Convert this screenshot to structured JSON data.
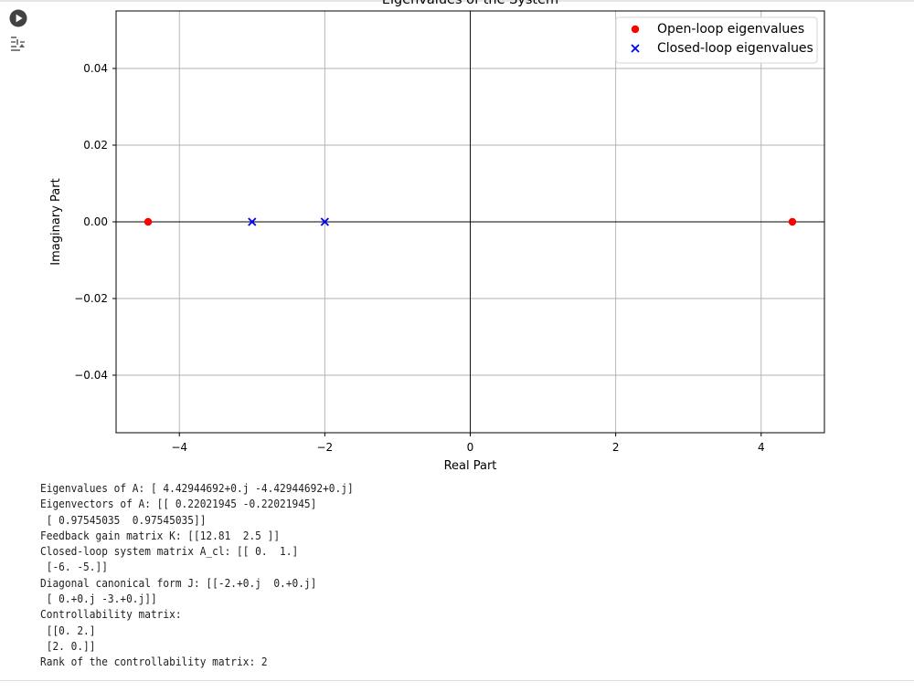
{
  "toolbar": {
    "run_icon": "play-circle-icon",
    "cell_tools_icon": "sliders-icon"
  },
  "chart_data": {
    "type": "scatter",
    "title": "Eigenvalues of the System",
    "xlabel": "Real Part",
    "ylabel": "Imaginary Part",
    "xlim": [
      -4.87,
      4.87
    ],
    "ylim": [
      -0.055,
      0.055
    ],
    "xticks": [
      -4,
      -2,
      0,
      2,
      4
    ],
    "xtick_labels": [
      "−4",
      "−2",
      "0",
      "2",
      "4"
    ],
    "yticks": [
      -0.04,
      -0.02,
      0.0,
      0.02,
      0.04
    ],
    "ytick_labels": [
      "−0.04",
      "−0.02",
      "0.00",
      "0.02",
      "0.04"
    ],
    "grid": true,
    "reference_lines": {
      "x": 0,
      "y": 0
    },
    "legend_position": "top-right",
    "series": [
      {
        "name": "Open-loop eigenvalues",
        "marker": "circle",
        "color": "#ff0000",
        "points": [
          {
            "x": 4.42944692,
            "y": 0
          },
          {
            "x": -4.42944692,
            "y": 0
          }
        ]
      },
      {
        "name": "Closed-loop eigenvalues",
        "marker": "x",
        "color": "#0000ff",
        "points": [
          {
            "x": -2.0,
            "y": 0
          },
          {
            "x": -3.0,
            "y": 0
          }
        ]
      }
    ]
  },
  "output": {
    "lines": [
      "Eigenvalues of A: [ 4.42944692+0.j -4.42944692+0.j]",
      "Eigenvectors of A: [[ 0.22021945 -0.22021945]",
      " [ 0.97545035  0.97545035]]",
      "Feedback gain matrix K: [[12.81  2.5 ]]",
      "Closed-loop system matrix A_cl: [[ 0.  1.]",
      " [-6. -5.]]",
      "Diagonal canonical form J: [[-2.+0.j  0.+0.j]",
      " [ 0.+0.j -3.+0.j]]",
      "Controllability matrix:",
      " [[0. 2.]",
      " [2. 0.]]",
      "Rank of the controllability matrix: 2"
    ]
  }
}
